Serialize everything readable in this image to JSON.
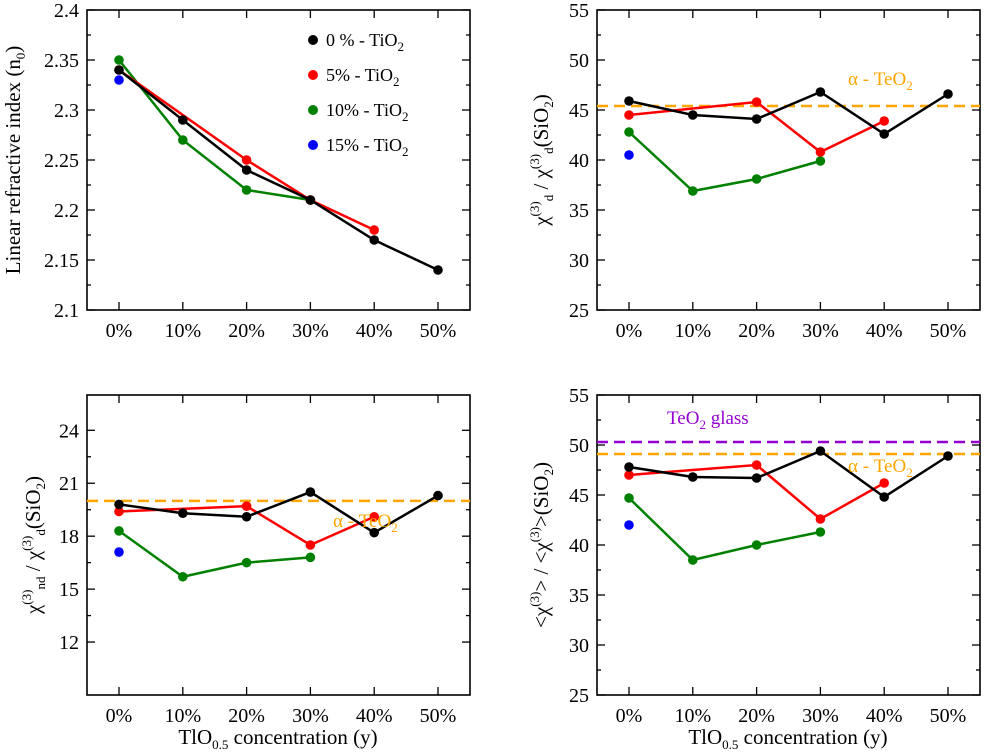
{
  "chart_data": [
    {
      "id": "p1",
      "type": "line",
      "title": "",
      "ylabel": {
        "main": "Linear refractive index (n",
        "sub": "0",
        "end": ")"
      },
      "xlabel": "",
      "categories": [
        "0%",
        "10%",
        "20%",
        "30%",
        "40%",
        "50%"
      ],
      "ylim": [
        2.1,
        2.4
      ],
      "yticks": [
        2.1,
        2.15,
        2.2,
        2.25,
        2.3,
        2.35,
        2.4
      ],
      "ytick_labels": [
        "2.1",
        "2.15",
        "2.2",
        "2.25",
        "2.3",
        "2.35",
        "2.4"
      ],
      "series": [
        {
          "name": "0 % - TiO2",
          "color": "#000000",
          "values": [
            2.34,
            2.29,
            2.24,
            2.21,
            2.17,
            2.14
          ]
        },
        {
          "name": "5% - TiO2",
          "color": "#ff0000",
          "values": [
            2.34,
            null,
            2.25,
            2.21,
            2.18,
            null
          ]
        },
        {
          "name": "10% - TiO2",
          "color": "#008000",
          "values": [
            2.35,
            2.27,
            2.22,
            2.21,
            null,
            null
          ]
        },
        {
          "name": "15% - TiO2",
          "color": "#0000ff",
          "values": [
            2.33,
            null,
            null,
            null,
            null,
            null
          ]
        }
      ],
      "legend": {
        "position": "top-right",
        "entries": [
          {
            "main": "0 % - TiO",
            "sub": "2",
            "color": "#000000"
          },
          {
            "main": "5% - TiO",
            "sub": "2",
            "color": "#ff0000"
          },
          {
            "main": "10% - TiO",
            "sub": "2",
            "color": "#008000"
          },
          {
            "main": "15% - TiO",
            "sub": "2",
            "color": "#0000ff"
          }
        ]
      },
      "reference_lines": []
    },
    {
      "id": "p2",
      "type": "line",
      "title": "",
      "ylabel": {
        "text": "χ(3)d / χ(3)d(SiO2)"
      },
      "xlabel": "",
      "categories": [
        "0%",
        "10%",
        "20%",
        "30%",
        "40%",
        "50%"
      ],
      "ylim": [
        25,
        55
      ],
      "yticks": [
        25,
        30,
        35,
        40,
        45,
        50,
        55
      ],
      "ytick_labels": [
        "25",
        "30",
        "35",
        "40",
        "45",
        "50",
        "55"
      ],
      "series": [
        {
          "name": "0 % - TiO2",
          "color": "#000000",
          "values": [
            45.9,
            44.5,
            44.1,
            46.8,
            42.6,
            46.6
          ]
        },
        {
          "name": "5% - TiO2",
          "color": "#ff0000",
          "values": [
            44.5,
            null,
            45.8,
            40.8,
            43.9,
            null
          ]
        },
        {
          "name": "10% - TiO2",
          "color": "#008000",
          "values": [
            42.8,
            36.9,
            38.1,
            39.9,
            null,
            null
          ]
        },
        {
          "name": "15% - TiO2",
          "color": "#0000ff",
          "values": [
            40.5,
            null,
            null,
            null,
            null,
            null
          ]
        }
      ],
      "reference_lines": [
        {
          "label_main": "α - TeO",
          "label_sub": "2",
          "value": 45.4,
          "color": "#ffa500",
          "label_anchor": "upper-right"
        }
      ]
    },
    {
      "id": "p3",
      "type": "line",
      "title": "",
      "ylabel": {
        "text": "χ(3)nd / χ(3)d(SiO2)"
      },
      "xlabel": "TlO0.5 concentration (y)",
      "categories": [
        "0%",
        "10%",
        "20%",
        "30%",
        "40%",
        "50%"
      ],
      "ylim": [
        9,
        26
      ],
      "yticks": [
        12,
        15,
        18,
        21,
        24
      ],
      "ytick_labels": [
        "12",
        "15",
        "18",
        "21",
        "24"
      ],
      "series": [
        {
          "name": "0 % - TiO2",
          "color": "#000000",
          "values": [
            19.8,
            19.3,
            19.1,
            20.5,
            18.2,
            20.3
          ]
        },
        {
          "name": "5% - TiO2",
          "color": "#ff0000",
          "values": [
            19.4,
            null,
            19.7,
            17.5,
            19.1,
            null
          ]
        },
        {
          "name": "10% - TiO2",
          "color": "#008000",
          "values": [
            18.3,
            15.7,
            16.5,
            16.8,
            null,
            null
          ]
        },
        {
          "name": "15% - TiO2",
          "color": "#0000ff",
          "values": [
            17.1,
            null,
            null,
            null,
            null,
            null
          ]
        }
      ],
      "reference_lines": [
        {
          "label_main": "α - TeO",
          "label_sub": "2",
          "value": 20.0,
          "color": "#ffa500",
          "label_anchor": "lower-right"
        }
      ]
    },
    {
      "id": "p4",
      "type": "line",
      "title": "",
      "ylabel": {
        "text": "<χ(3)> / <χ(3)>(SiO2)"
      },
      "xlabel": "TlO0.5 concentration (y)",
      "categories": [
        "0%",
        "10%",
        "20%",
        "30%",
        "40%",
        "50%"
      ],
      "ylim": [
        25,
        55
      ],
      "yticks": [
        25,
        30,
        35,
        40,
        45,
        50,
        55
      ],
      "ytick_labels": [
        "25",
        "30",
        "35",
        "40",
        "45",
        "50",
        "55"
      ],
      "series": [
        {
          "name": "0 % - TiO2",
          "color": "#000000",
          "values": [
            47.8,
            46.8,
            46.7,
            49.4,
            44.8,
            48.9
          ]
        },
        {
          "name": "5% - TiO2",
          "color": "#ff0000",
          "values": [
            47.0,
            null,
            48.0,
            42.6,
            46.2,
            null
          ]
        },
        {
          "name": "10% - TiO2",
          "color": "#008000",
          "values": [
            44.7,
            38.5,
            40.0,
            41.3,
            null,
            null
          ]
        },
        {
          "name": "15% - TiO2",
          "color": "#0000ff",
          "values": [
            42.0,
            null,
            null,
            null,
            null,
            null
          ]
        }
      ],
      "reference_lines": [
        {
          "label_main": "TeO",
          "label_sub": "2",
          "label_end": " glass",
          "value": 50.3,
          "color": "#9400d3",
          "label_anchor": "upper-left"
        },
        {
          "label_main": "α - TeO",
          "label_sub": "2",
          "value": 49.1,
          "color": "#ffa500",
          "label_anchor": "lower-right"
        }
      ]
    }
  ],
  "labels": {
    "chi": "χ",
    "sup3": "(3)",
    "sub_d": "d",
    "sub_nd": "nd",
    "slash": " / ",
    "sio2_main": "(SiO",
    "sio2_sub": "2",
    "sio2_end": ")",
    "lt": "<",
    "gt": ">",
    "xlabel_main": "TlO",
    "xlabel_sub": "0.5",
    "xlabel_end": " concentration (y)"
  }
}
